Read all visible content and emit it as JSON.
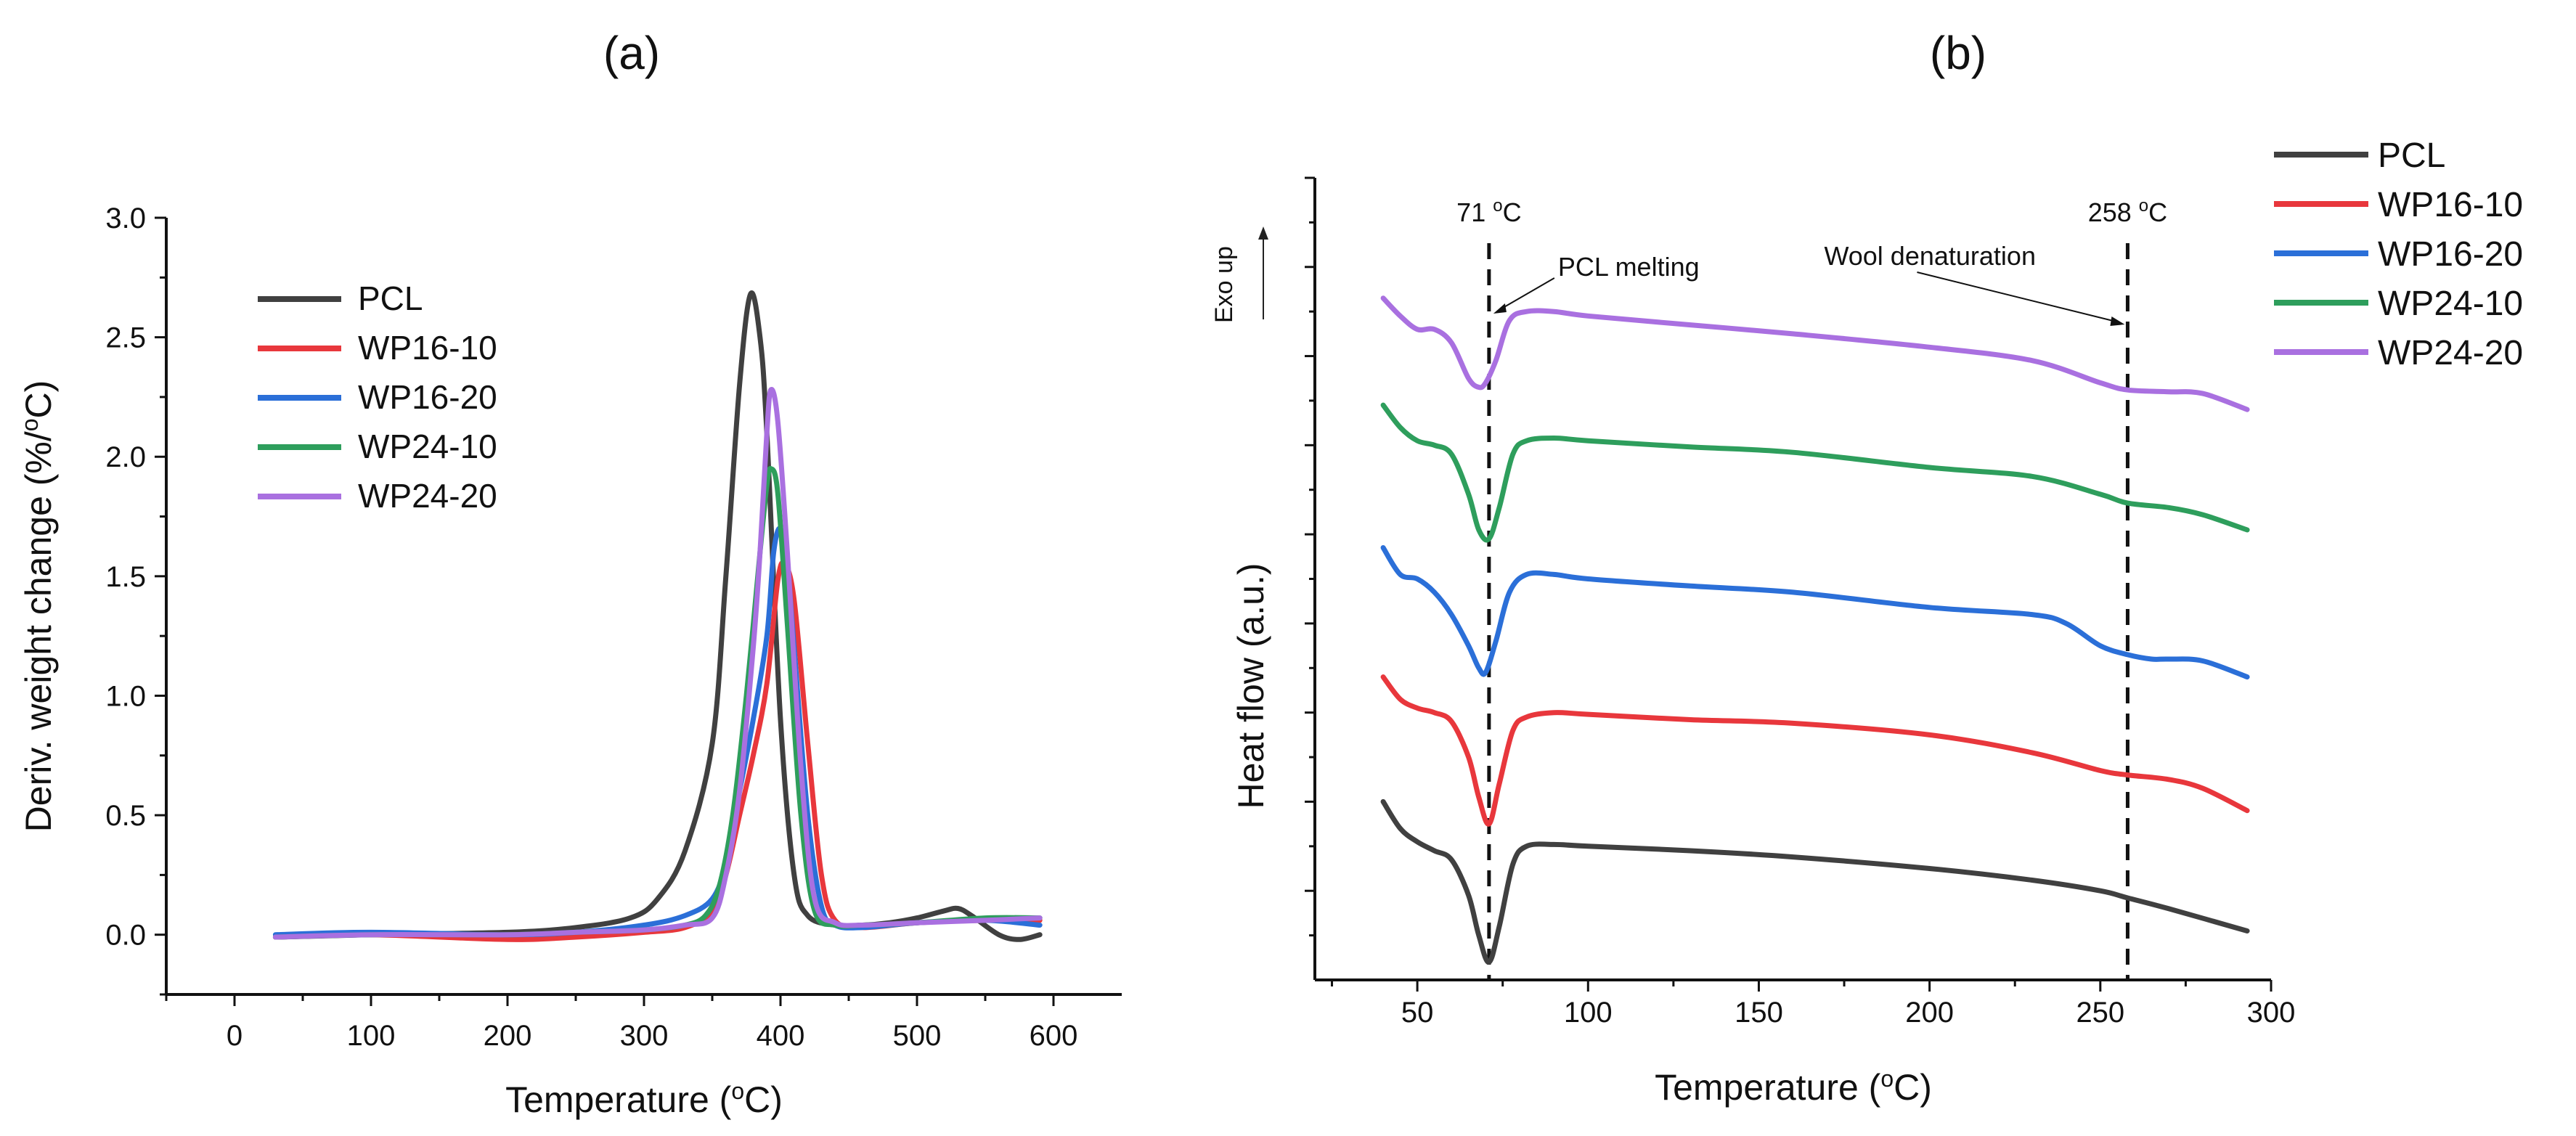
{
  "series_colors": {
    "PCL": "#404040",
    "WP16-10": "#e8373c",
    "WP16-20": "#2b6fd8",
    "WP24-10": "#2e9e5c",
    "WP24-20": "#a970e0"
  },
  "chart_data": [
    {
      "panel_label": "(a)",
      "type": "line",
      "xlabel": "Temperature (",
      "xlabel_sup": "o",
      "xlabel_tail": "C)",
      "ylabel": "Deriv. weight change (%/",
      "ylabel_sup": "o",
      "ylabel_tail": "C)",
      "xlim": [
        -50,
        650
      ],
      "ylim": [
        -0.25,
        3.0
      ],
      "xticks": [
        "0",
        "100",
        "200",
        "300",
        "400",
        "500",
        "600"
      ],
      "yticks": [
        "0.0",
        "0.5",
        "1.0",
        "1.5",
        "2.0",
        "2.5",
        "3.0"
      ],
      "legend": [
        "PCL",
        "WP16-10",
        "WP16-20",
        "WP24-10",
        "WP24-20"
      ],
      "series": [
        {
          "name": "PCL",
          "x": [
            30,
            100,
            200,
            250,
            290,
            310,
            330,
            350,
            360,
            370,
            378,
            385,
            390,
            400,
            410,
            420,
            440,
            460,
            480,
            500,
            520,
            530,
            540,
            560,
            575,
            590
          ],
          "y": [
            -0.01,
            0.0,
            0.01,
            0.03,
            0.07,
            0.15,
            0.35,
            0.8,
            1.5,
            2.3,
            2.68,
            2.5,
            2.1,
            0.9,
            0.25,
            0.08,
            0.04,
            0.04,
            0.05,
            0.07,
            0.1,
            0.11,
            0.08,
            0.0,
            -0.02,
            0.0
          ]
        },
        {
          "name": "WP16-10",
          "x": [
            30,
            100,
            200,
            250,
            300,
            330,
            350,
            360,
            370,
            380,
            390,
            398,
            403,
            410,
            420,
            430,
            440,
            460,
            500,
            550,
            590
          ],
          "y": [
            -0.01,
            0.0,
            -0.02,
            -0.01,
            0.01,
            0.03,
            0.1,
            0.25,
            0.5,
            0.75,
            1.05,
            1.48,
            1.55,
            1.4,
            0.8,
            0.25,
            0.06,
            0.03,
            0.05,
            0.06,
            0.06
          ]
        },
        {
          "name": "WP16-20",
          "x": [
            30,
            100,
            200,
            250,
            300,
            330,
            350,
            360,
            370,
            380,
            390,
            395,
            400,
            405,
            410,
            420,
            430,
            440,
            460,
            500,
            550,
            590
          ],
          "y": [
            0.0,
            0.01,
            0.0,
            0.01,
            0.04,
            0.08,
            0.15,
            0.3,
            0.6,
            0.9,
            1.25,
            1.6,
            1.7,
            1.55,
            1.2,
            0.5,
            0.12,
            0.04,
            0.03,
            0.05,
            0.06,
            0.04
          ]
        },
        {
          "name": "WP24-10",
          "x": [
            30,
            100,
            200,
            250,
            300,
            330,
            345,
            355,
            365,
            375,
            385,
            390,
            393,
            398,
            405,
            415,
            425,
            440,
            460,
            500,
            550,
            590
          ],
          "y": [
            -0.01,
            0.0,
            0.0,
            0.01,
            0.02,
            0.04,
            0.08,
            0.2,
            0.5,
            1.0,
            1.6,
            1.88,
            1.95,
            1.85,
            1.3,
            0.5,
            0.1,
            0.04,
            0.04,
            0.05,
            0.07,
            0.07
          ]
        },
        {
          "name": "WP24-20",
          "x": [
            30,
            100,
            200,
            250,
            300,
            330,
            350,
            360,
            370,
            380,
            385,
            390,
            393,
            398,
            405,
            415,
            425,
            440,
            460,
            500,
            550,
            590
          ],
          "y": [
            -0.01,
            0.0,
            0.0,
            0.01,
            0.02,
            0.04,
            0.07,
            0.25,
            0.6,
            1.2,
            1.6,
            2.1,
            2.28,
            2.15,
            1.6,
            0.7,
            0.15,
            0.05,
            0.04,
            0.05,
            0.06,
            0.07
          ]
        }
      ]
    },
    {
      "panel_label": "(b)",
      "type": "line",
      "xlabel": "Temperature (",
      "xlabel_sup": "o",
      "xlabel_tail": "C)",
      "ylabel": "Heat flow (a.u.)",
      "xlim": [
        20,
        300
      ],
      "ylim": [
        0,
        9
      ],
      "xticks": [
        "50",
        "100",
        "150",
        "200",
        "250",
        "300"
      ],
      "y_minor_tick_count": 10,
      "exo_label": "Exo up",
      "legend": [
        "PCL",
        "WP16-10",
        "WP16-20",
        "WP24-10",
        "WP24-20"
      ],
      "annotations": [
        {
          "value": 71,
          "label_main": "71 ",
          "label_sup": "o",
          "label_tail": "C",
          "note": "PCL melting"
        },
        {
          "value": 258,
          "label_main": "258 ",
          "label_sup": "o",
          "label_tail": "C",
          "note": "Wool denaturation"
        }
      ],
      "series": [
        {
          "name": "PCL",
          "x": [
            40,
            45,
            50,
            55,
            60,
            65,
            68,
            71,
            74,
            78,
            82,
            90,
            100,
            130,
            160,
            200,
            230,
            250,
            258,
            270,
            293
          ],
          "y": [
            2.0,
            1.7,
            1.55,
            1.45,
            1.35,
            0.95,
            0.5,
            0.2,
            0.6,
            1.3,
            1.5,
            1.52,
            1.5,
            1.45,
            1.38,
            1.25,
            1.12,
            1.0,
            0.92,
            0.8,
            0.55
          ]
        },
        {
          "name": "WP16-10",
          "x": [
            40,
            45,
            50,
            55,
            60,
            65,
            68,
            71,
            74,
            78,
            82,
            90,
            100,
            130,
            160,
            200,
            230,
            250,
            258,
            270,
            280,
            293
          ],
          "y": [
            3.4,
            3.15,
            3.05,
            3.0,
            2.9,
            2.5,
            2.05,
            1.75,
            2.2,
            2.8,
            2.95,
            3.0,
            2.98,
            2.92,
            2.88,
            2.75,
            2.55,
            2.35,
            2.3,
            2.25,
            2.15,
            1.9
          ]
        },
        {
          "name": "WP16-20",
          "x": [
            40,
            45,
            50,
            55,
            60,
            65,
            68,
            70,
            73,
            77,
            82,
            90,
            100,
            130,
            160,
            200,
            230,
            240,
            250,
            258,
            265,
            270,
            280,
            293
          ],
          "y": [
            4.85,
            4.55,
            4.5,
            4.35,
            4.1,
            3.75,
            3.5,
            3.45,
            3.8,
            4.35,
            4.55,
            4.55,
            4.5,
            4.42,
            4.35,
            4.18,
            4.1,
            4.0,
            3.75,
            3.65,
            3.6,
            3.6,
            3.58,
            3.4
          ]
        },
        {
          "name": "WP24-10",
          "x": [
            40,
            45,
            50,
            55,
            60,
            65,
            68,
            71,
            74,
            78,
            82,
            90,
            100,
            130,
            160,
            200,
            230,
            250,
            258,
            270,
            280,
            293
          ],
          "y": [
            6.45,
            6.2,
            6.05,
            6.0,
            5.9,
            5.45,
            5.05,
            4.95,
            5.3,
            5.9,
            6.05,
            6.08,
            6.05,
            5.98,
            5.92,
            5.75,
            5.65,
            5.45,
            5.35,
            5.3,
            5.22,
            5.05
          ]
        },
        {
          "name": "WP24-20",
          "x": [
            40,
            45,
            50,
            55,
            60,
            65,
            68,
            70,
            73,
            77,
            82,
            90,
            100,
            130,
            160,
            200,
            230,
            250,
            258,
            270,
            280,
            293
          ],
          "y": [
            7.65,
            7.45,
            7.3,
            7.3,
            7.15,
            6.75,
            6.65,
            6.7,
            6.95,
            7.4,
            7.5,
            7.5,
            7.45,
            7.35,
            7.25,
            7.1,
            6.95,
            6.7,
            6.62,
            6.6,
            6.58,
            6.4
          ]
        }
      ]
    }
  ]
}
